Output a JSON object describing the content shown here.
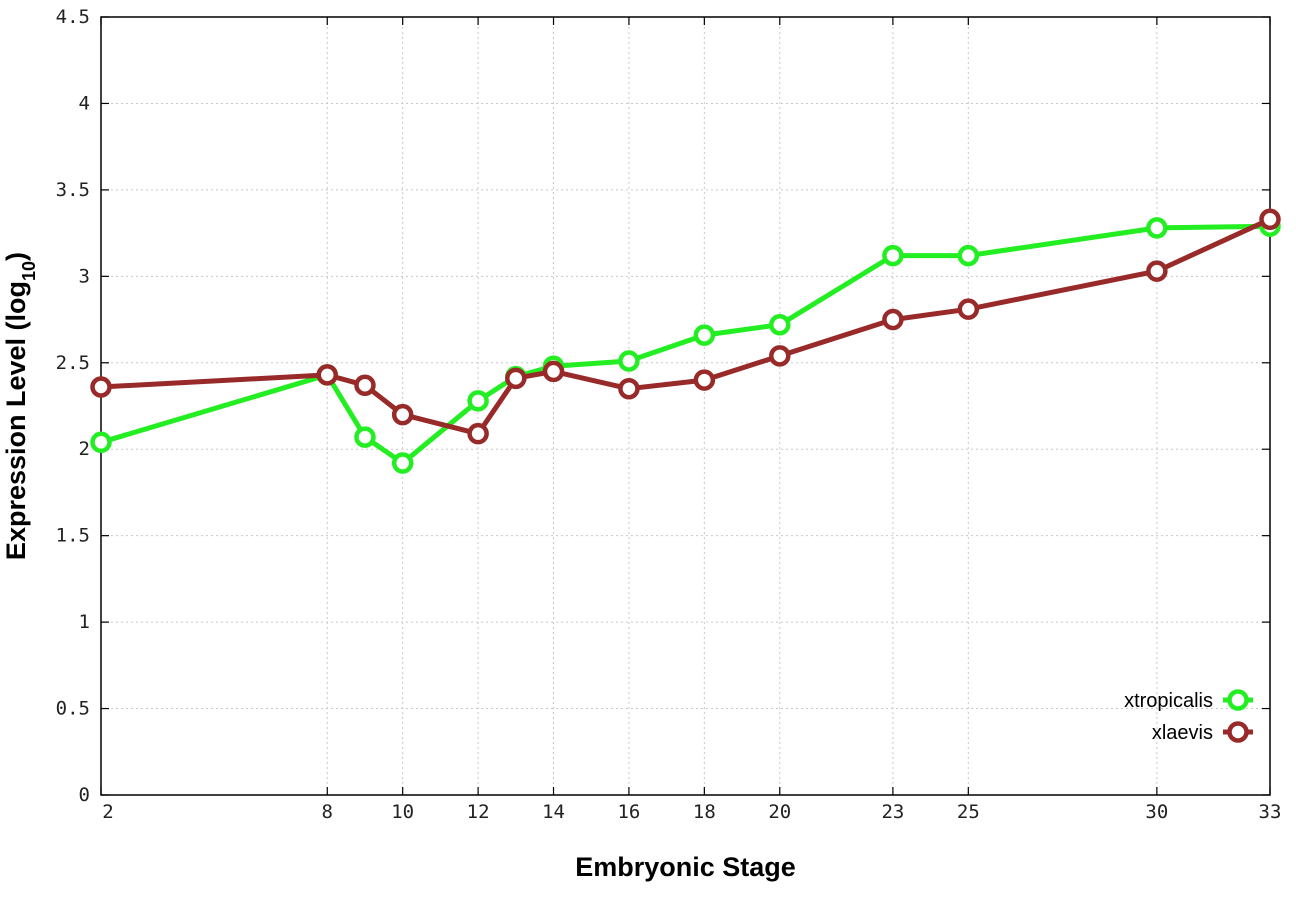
{
  "chart_data": {
    "type": "line",
    "xlabel": "Embryonic Stage",
    "ylabel": "Expression Level (log",
    "ylabel_sub": "10",
    "ylabel_close": ")",
    "xlim": [
      2,
      33
    ],
    "ylim": [
      0,
      4.5
    ],
    "x_ticks": [
      2,
      8,
      10,
      12,
      14,
      16,
      18,
      20,
      23,
      25,
      30,
      33
    ],
    "x_tick_labels": [
      "2",
      "8",
      "10",
      "12",
      "14",
      "16",
      "18",
      "20",
      "23",
      "25",
      "30",
      "33"
    ],
    "y_ticks": [
      0,
      0.5,
      1,
      1.5,
      2,
      2.5,
      3,
      3.5,
      4,
      4.5
    ],
    "y_tick_labels": [
      "0",
      "0.5",
      "1",
      "1.5",
      "2",
      "2.5",
      "3",
      "3.5",
      "4",
      "4.5"
    ],
    "grid": true,
    "legend_position": "bottom-right",
    "series": [
      {
        "name": "xtropicalis",
        "color": "#22ee22",
        "x": [
          2,
          8,
          9,
          10,
          12,
          13,
          14,
          16,
          18,
          20,
          23,
          25,
          30,
          33
        ],
        "y": [
          2.04,
          2.43,
          2.07,
          1.92,
          2.28,
          2.42,
          2.48,
          2.51,
          2.66,
          2.72,
          3.12,
          3.12,
          3.28,
          3.29
        ]
      },
      {
        "name": "xlaevis",
        "color": "#982a2a",
        "x": [
          2,
          8,
          9,
          10,
          12,
          13,
          14,
          16,
          18,
          20,
          23,
          25,
          30,
          33
        ],
        "y": [
          2.36,
          2.43,
          2.37,
          2.2,
          2.09,
          2.41,
          2.45,
          2.35,
          2.4,
          2.54,
          2.75,
          2.81,
          3.03,
          3.33
        ]
      }
    ]
  }
}
